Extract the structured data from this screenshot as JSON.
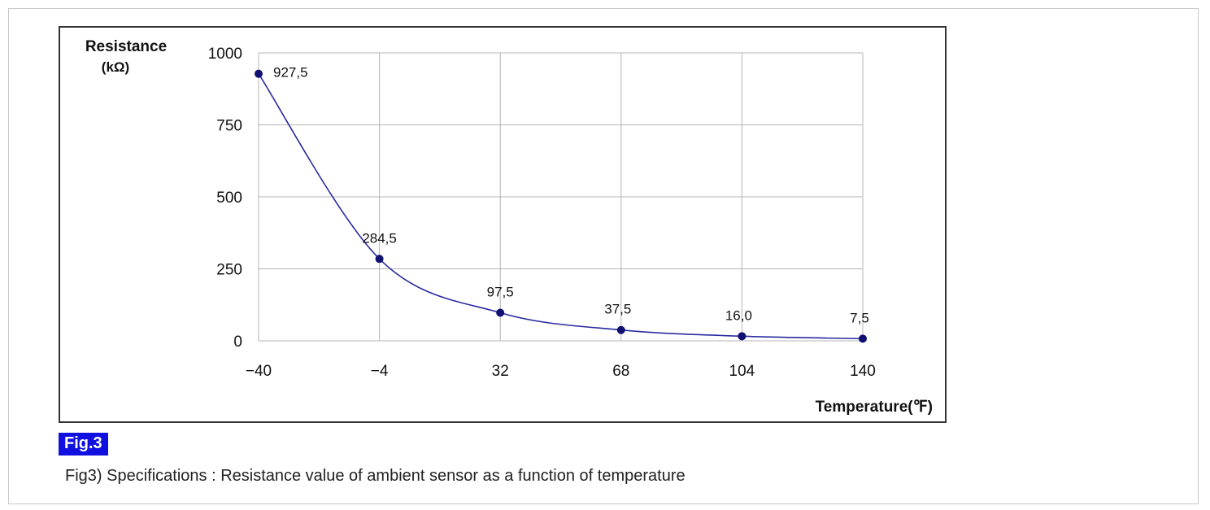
{
  "chart_data": {
    "type": "line",
    "categories": [
      "-40",
      "-4",
      "32",
      "68",
      "104",
      "140"
    ],
    "x": [
      -40,
      -4,
      32,
      68,
      104,
      140
    ],
    "series": [
      {
        "values": [
          927.5,
          284.5,
          97.5,
          37.5,
          16.0,
          7.5
        ]
      }
    ],
    "data_labels": [
      "927,5",
      "284,5",
      "97,5",
      "37,5",
      "16,0",
      "7,5"
    ],
    "y_ticks": [
      0,
      250,
      500,
      750,
      1000
    ],
    "x_tick_labels": [
      "−40",
      "−4",
      "32",
      "68",
      "104",
      "140"
    ],
    "ylim": [
      0,
      1000
    ],
    "ylabel": "Resistance",
    "ylabel_unit": "(kΩ)",
    "xlabel": "Temperature(℉)",
    "grid": true,
    "colors": {
      "line": "#2a2aa0",
      "marker": "#101070",
      "grid": "#b4b4b4"
    }
  },
  "figure": {
    "badge": "Fig.3",
    "caption": "Fig3) Specifications : Resistance value of ambient sensor as a function of temperature",
    "badge_color": "#1010e0"
  }
}
